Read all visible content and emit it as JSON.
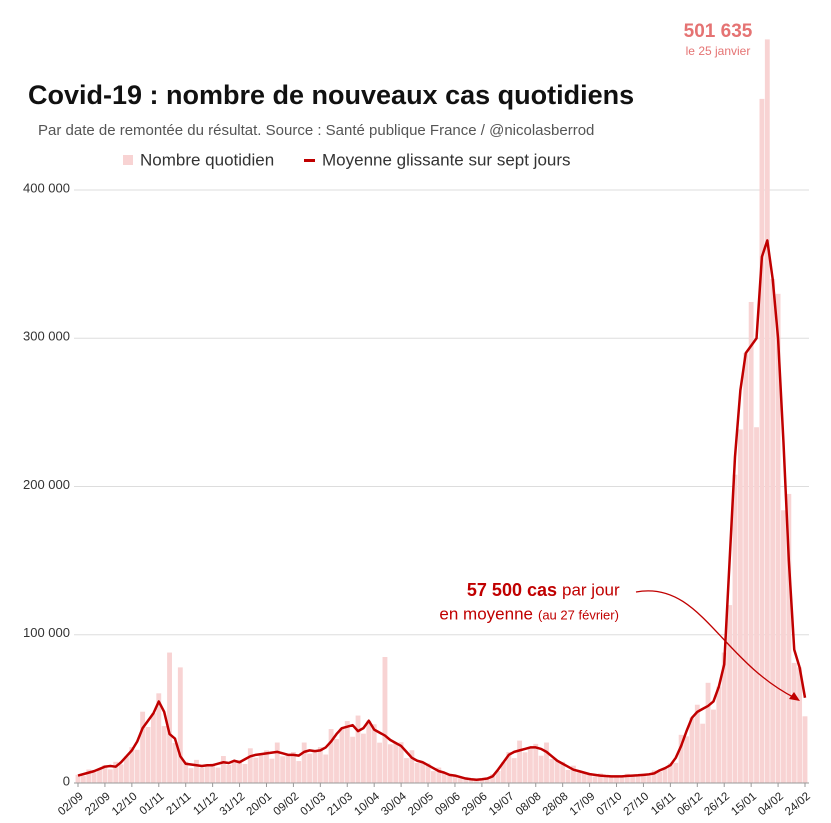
{
  "chart_data": {
    "type": "bar-line",
    "title": "Covid-19 : nombre de nouveaux cas quotidiens",
    "subtitle": "Par date de remontée du résultat. Source : Santé publique France / @nicolasberrod",
    "annotations": {
      "peak_value": "501 635",
      "peak_date": "le 25 janvier",
      "avg_value": "57 500 cas",
      "avg_per": "par jour",
      "avg_mean": "en moyenne",
      "avg_date": "(au 27 février)"
    },
    "categories": [
      "02/09",
      null,
      null,
      null,
      null,
      "22/09",
      null,
      null,
      null,
      null,
      "12/10",
      null,
      null,
      null,
      null,
      "01/11",
      null,
      null,
      null,
      null,
      "21/11",
      null,
      null,
      null,
      null,
      "11/12",
      null,
      null,
      null,
      null,
      "31/12",
      null,
      null,
      null,
      null,
      "20/01",
      null,
      null,
      null,
      null,
      "09/02",
      null,
      null,
      null,
      null,
      "01/03",
      null,
      null,
      null,
      null,
      "21/03",
      null,
      null,
      null,
      null,
      "10/04",
      null,
      null,
      null,
      null,
      "30/04",
      null,
      null,
      null,
      null,
      "20/05",
      null,
      null,
      null,
      null,
      "09/06",
      null,
      null,
      null,
      null,
      "29/06",
      null,
      null,
      null,
      null,
      "19/07",
      null,
      null,
      null,
      null,
      "08/08",
      null,
      null,
      null,
      null,
      "28/08",
      null,
      null,
      null,
      null,
      "17/09",
      null,
      null,
      null,
      null,
      "07/10",
      null,
      null,
      null,
      null,
      "27/10",
      null,
      null,
      null,
      null,
      "16/11",
      null,
      null,
      null,
      null,
      "06/12",
      null,
      null,
      null,
      null,
      "26/12",
      null,
      null,
      null,
      null,
      "15/01",
      null,
      null,
      null,
      null,
      "04/02",
      null,
      null,
      null,
      null,
      "24/02"
    ],
    "series": [
      {
        "name": "Nombre quotidien",
        "color": "#f8d3d3",
        "kind": "bar",
        "values": [
          5500,
          4800,
          9100,
          7200,
          9500,
          12100,
          9200,
          14300,
          12600,
          18000,
          24200,
          22400,
          48100,
          37800,
          47000,
          60500,
          38400,
          88000,
          27000,
          78000,
          14300,
          10000,
          15600,
          10400,
          12000,
          13200,
          10400,
          18200,
          12200,
          15000,
          15400,
          12800,
          23400,
          17100,
          19500,
          22000,
          16400,
          27300,
          18000,
          19000,
          20900,
          14800,
          27300,
          19800,
          21500,
          24200,
          19200,
          36400,
          29700,
          37000,
          41800,
          31200,
          45500,
          33300,
          42000,
          39600,
          27200,
          85000,
          26100,
          27000,
          27500,
          16800,
          22100,
          13500,
          14000,
          13200,
          8000,
          10400,
          6300,
          5500,
          5500,
          3200,
          3900,
          2300,
          2200,
          2800,
          2400,
          5900,
          8100,
          14000,
          20900,
          16800,
          28600,
          20700,
          24000,
          26400,
          18400,
          27300,
          16200,
          15000,
          14300,
          8800,
          11700,
          7200,
          7000,
          6600,
          4400,
          6500,
          4200,
          4500,
          5000,
          3600,
          6200,
          4500,
          5200,
          6100,
          4600,
          8500,
          7700,
          10000,
          13200,
          13600,
          32500,
          31500,
          44000,
          52800,
          40000,
          67600,
          49500,
          65000,
          88000,
          120000,
          208000,
          238500,
          290000,
          324500,
          240000,
          461500,
          501635,
          340000,
          330000,
          184000,
          195000,
          81000,
          78000,
          45000
        ]
      },
      {
        "name": "Moyenne glissante sur sept jours",
        "color": "#c00000",
        "kind": "line",
        "values": [
          5000,
          6000,
          7000,
          8000,
          9500,
          11000,
          11500,
          11000,
          14000,
          18000,
          22000,
          28000,
          37000,
          42000,
          47000,
          55000,
          48000,
          33000,
          30000,
          18000,
          13000,
          12500,
          12000,
          11500,
          12000,
          12000,
          13000,
          14000,
          13500,
          15000,
          14000,
          16000,
          18000,
          19000,
          19500,
          20000,
          20500,
          21000,
          20000,
          19000,
          19000,
          18500,
          21000,
          22000,
          21500,
          22000,
          24000,
          28000,
          33000,
          37000,
          38000,
          39000,
          35000,
          37000,
          42000,
          36000,
          34000,
          32000,
          29000,
          27000,
          25000,
          21000,
          17000,
          15000,
          14000,
          12000,
          10000,
          8000,
          7000,
          5500,
          5000,
          4000,
          3000,
          2500,
          2200,
          2500,
          3000,
          4500,
          9000,
          14000,
          19000,
          21000,
          22000,
          23000,
          24000,
          24000,
          23000,
          21000,
          18000,
          15000,
          13000,
          11000,
          9000,
          8000,
          7000,
          6000,
          5500,
          5000,
          4700,
          4500,
          4500,
          4500,
          4800,
          5000,
          5200,
          5500,
          5800,
          6500,
          8500,
          10000,
          12000,
          17000,
          25000,
          35000,
          44000,
          48000,
          50000,
          52000,
          55000,
          65000,
          80000,
          150000,
          220000,
          265000,
          290000,
          295000,
          300000,
          355000,
          366000,
          340000,
          300000,
          230000,
          150000,
          90000,
          78000,
          57500
        ]
      }
    ],
    "ylim": [
      0,
      510000
    ],
    "yticks": [
      0,
      {
        "value": 100000,
        "label": "100 000"
      },
      {
        "value": 200000,
        "label": "200 000"
      },
      {
        "value": 300000,
        "label": "300 000"
      },
      {
        "value": 400000,
        "label": "400 000"
      }
    ],
    "grid": true
  }
}
